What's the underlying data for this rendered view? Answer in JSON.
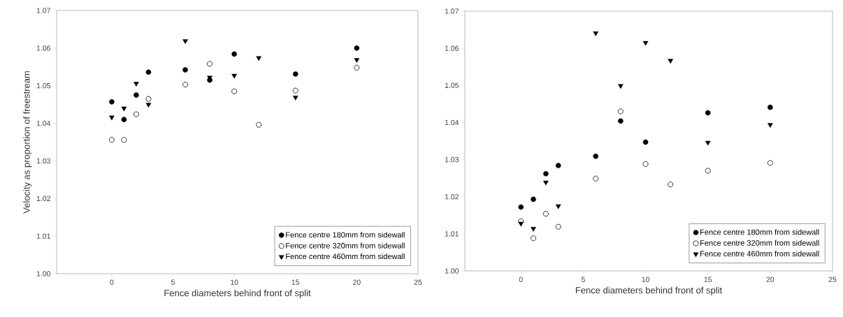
{
  "chart_data": [
    {
      "type": "scatter",
      "xlabel": "Fence diameters behind front of split",
      "ylabel": "Velocity as proportion of freestream",
      "xlim": [
        -4.5,
        25
      ],
      "xticks": [
        0,
        5,
        10,
        15,
        20,
        25
      ],
      "ylim": [
        1.0,
        1.07
      ],
      "yticks": [
        {
          "value": 1.0,
          "label": "1.00"
        },
        {
          "value": 1.01,
          "label": "1.01"
        },
        {
          "value": 1.02,
          "label": "1.02"
        },
        {
          "value": 1.03,
          "label": "1.03"
        },
        {
          "value": 1.04,
          "label": "1.04"
        },
        {
          "value": 1.05,
          "label": "1.05"
        },
        {
          "value": 1.06,
          "label": "1.06"
        },
        {
          "value": 1.07,
          "label": "1.07"
        }
      ],
      "legend": "bottom right",
      "series": [
        {
          "name": "Fence centre 180mm from sidewall",
          "color": "#000000",
          "marker": "circle",
          "x": [
            0,
            1,
            2,
            3,
            6,
            8,
            10,
            15,
            20
          ],
          "values": [
            1.0457,
            1.041,
            1.0475,
            1.0536,
            1.0542,
            1.0515,
            1.0584,
            1.0531,
            1.06
          ]
        },
        {
          "name": "Fence centre 320mm from sidewall",
          "color": "#000000",
          "marker": "open circle",
          "x": [
            0,
            1,
            2,
            3,
            6,
            8,
            10,
            12,
            15,
            20
          ],
          "values": [
            1.0356,
            1.0356,
            1.0424,
            1.0465,
            1.0503,
            1.0558,
            1.0485,
            1.0396,
            1.0487,
            1.0548
          ]
        },
        {
          "name": "Fence centre 460mm from sidewall",
          "color": "#000000",
          "marker": "triangle",
          "x": [
            0,
            1,
            2,
            3,
            6,
            8,
            10,
            12,
            15,
            20
          ],
          "values": [
            1.0416,
            1.044,
            1.0506,
            1.045,
            1.0619,
            1.0522,
            1.0527,
            1.0574,
            1.0469,
            1.0569
          ]
        }
      ]
    },
    {
      "type": "scatter",
      "xlabel": "Fence diameters behind front of split",
      "xlim": [
        -4.5,
        25
      ],
      "xticks": [
        0,
        5,
        10,
        15,
        20,
        25
      ],
      "ylim": [
        1.0,
        1.07
      ],
      "yticks": [
        {
          "value": 1.0,
          "label": "1.00"
        },
        {
          "value": 1.01,
          "label": "1.01"
        },
        {
          "value": 1.02,
          "label": "1.02"
        },
        {
          "value": 1.03,
          "label": "1.03"
        },
        {
          "value": 1.04,
          "label": "1.04"
        },
        {
          "value": 1.05,
          "label": "1.05"
        },
        {
          "value": 1.06,
          "label": "1.06"
        },
        {
          "value": 1.07,
          "label": "1.07"
        }
      ],
      "legend": "bottom right",
      "series": [
        {
          "name": "Fence centre 180mm from sidewall",
          "color": "#000000",
          "marker": "circle",
          "x": [
            0,
            1,
            2,
            3,
            6,
            8,
            10,
            15,
            20
          ],
          "values": [
            1.0172,
            1.0193,
            1.0262,
            1.0284,
            1.0309,
            1.0404,
            1.0347,
            1.0426,
            1.0441
          ]
        },
        {
          "name": "Fence centre 320mm from sidewall",
          "color": "#000000",
          "marker": "open circle",
          "x": [
            0,
            1,
            2,
            3,
            6,
            8,
            10,
            12,
            15,
            20
          ],
          "values": [
            1.0134,
            1.0088,
            1.0154,
            1.0119,
            1.0249,
            1.043,
            1.0288,
            1.0233,
            1.027,
            1.0291
          ]
        },
        {
          "name": "Fence centre 460mm from sidewall",
          "color": "#000000",
          "marker": "triangle",
          "x": [
            0,
            1,
            2,
            3,
            6,
            8,
            10,
            12,
            15,
            20
          ],
          "values": [
            1.0128,
            1.0114,
            1.0239,
            1.0175,
            1.0641,
            1.0499,
            1.0615,
            1.0567,
            1.0346,
            1.0394
          ]
        }
      ]
    }
  ]
}
